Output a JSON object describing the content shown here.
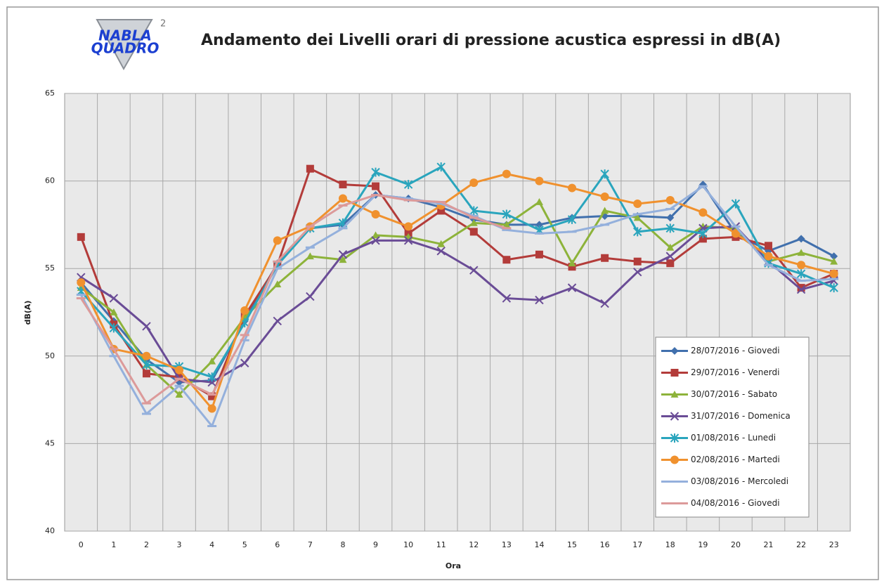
{
  "logo": {
    "line1": "NABLA",
    "line2": "QUADRO",
    "superscript": "2"
  },
  "chart_data": {
    "type": "line",
    "title": "Andamento dei Livelli orari di pressione acustica espressi in dB(A)",
    "x_label": "Ora",
    "y_label": "dB(A)",
    "categories": [
      "0",
      "1",
      "2",
      "3",
      "4",
      "5",
      "6",
      "7",
      "8",
      "9",
      "10",
      "11",
      "12",
      "13",
      "14",
      "15",
      "16",
      "17",
      "18",
      "19",
      "20",
      "21",
      "22",
      "23"
    ],
    "ylim": [
      40,
      65
    ],
    "yticks": [
      40,
      45,
      50,
      55,
      60,
      65
    ],
    "grid": true,
    "legend": "lower-right",
    "series": [
      {
        "name": "28/07/2016 - Giovedi",
        "color": "#4170ad",
        "marker": "diamond",
        "values": [
          54.2,
          52.0,
          49.8,
          48.5,
          48.6,
          52.0,
          55.3,
          57.3,
          57.5,
          59.2,
          59.0,
          58.5,
          57.8,
          57.5,
          57.5,
          57.9,
          58.0,
          58.0,
          57.9,
          59.8,
          57.0,
          56.0,
          56.7,
          55.7
        ]
      },
      {
        "name": "29/07/2016 - Venerdi",
        "color": "#b33c3a",
        "marker": "square",
        "values": [
          56.8,
          51.8,
          49.0,
          48.8,
          47.7,
          52.3,
          55.2,
          60.7,
          59.8,
          59.7,
          57.0,
          58.3,
          57.1,
          55.5,
          55.8,
          55.1,
          55.6,
          55.4,
          55.3,
          56.7,
          56.8,
          56.3,
          53.9,
          54.7
        ]
      },
      {
        "name": "30/07/2016 - Sabato",
        "color": "#8db33a",
        "marker": "triangle",
        "values": [
          53.9,
          52.5,
          49.5,
          47.8,
          49.7,
          52.2,
          54.1,
          55.7,
          55.5,
          56.9,
          56.8,
          56.4,
          57.6,
          57.5,
          58.8,
          55.3,
          58.3,
          57.9,
          56.2,
          57.4,
          57.3,
          55.4,
          55.9,
          55.4
        ]
      },
      {
        "name": "31/07/2016 - Domenica",
        "color": "#6a4c96",
        "marker": "x",
        "values": [
          54.5,
          53.3,
          51.7,
          48.7,
          48.5,
          49.6,
          52.0,
          53.4,
          55.8,
          56.6,
          56.6,
          56.0,
          54.9,
          53.3,
          53.2,
          53.9,
          53.0,
          54.8,
          55.7,
          57.3,
          57.4,
          55.4,
          53.8,
          54.3
        ]
      },
      {
        "name": "01/08/2016 - Lunedi",
        "color": "#2aa5bd",
        "marker": "star",
        "values": [
          53.7,
          51.6,
          49.5,
          49.4,
          48.8,
          51.9,
          55.2,
          57.3,
          57.6,
          60.5,
          59.8,
          60.8,
          58.3,
          58.1,
          57.2,
          57.8,
          60.4,
          57.1,
          57.3,
          57.0,
          58.7,
          55.3,
          54.7,
          53.9
        ]
      },
      {
        "name": "02/08/2016 - Martedi",
        "color": "#f0912e",
        "marker": "circle",
        "values": [
          54.2,
          50.4,
          50.0,
          49.2,
          47.0,
          52.6,
          56.6,
          57.4,
          59.0,
          58.1,
          57.4,
          58.6,
          59.9,
          60.4,
          60.0,
          59.6,
          59.1,
          58.7,
          58.9,
          58.2,
          57.0,
          55.7,
          55.2,
          54.7
        ]
      },
      {
        "name": "03/08/2016 - Mercoledi",
        "color": "#94b0dc",
        "marker": "dash",
        "values": [
          53.5,
          50.0,
          46.7,
          48.3,
          46.0,
          50.9,
          55.0,
          56.2,
          57.3,
          59.2,
          59.0,
          58.7,
          58.0,
          57.2,
          57.0,
          57.1,
          57.5,
          58.1,
          58.4,
          59.7,
          57.4,
          55.2,
          54.3,
          54.4
        ]
      },
      {
        "name": "04/08/2016 - Giovedi",
        "color": "#dc9a9a",
        "marker": "dash",
        "values": [
          53.3,
          50.4,
          47.3,
          48.7,
          47.8,
          51.2,
          55.4,
          57.4,
          58.6,
          59.2,
          58.9,
          58.8,
          57.9,
          57.3,
          null,
          null,
          null,
          null,
          null,
          null,
          null,
          null,
          null,
          null
        ]
      }
    ]
  }
}
